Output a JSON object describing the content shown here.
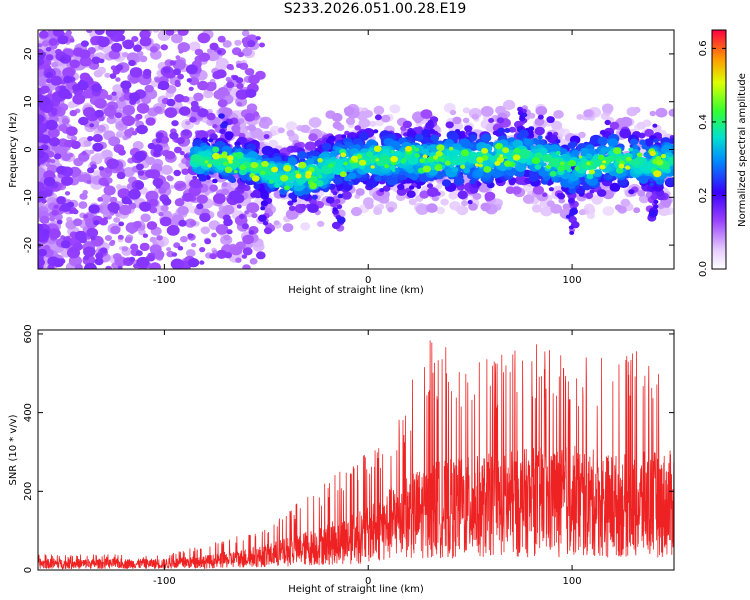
{
  "title": "S233.2026.051.00.28.E19",
  "chart_data": [
    {
      "type": "heatmap",
      "xlabel": "Height of straight line (km)",
      "ylabel": "Frequency (Hz)",
      "xlim": [
        -162,
        150
      ],
      "ylim": [
        -25,
        25
      ],
      "xticks": [
        -100,
        0,
        100
      ],
      "yticks": [
        -20,
        -10,
        0,
        10,
        20
      ],
      "colorbar": {
        "label": "Normalized spectral amplitude",
        "range": [
          0,
          0.65
        ],
        "ticks": [
          "0.0",
          "0.2",
          "0.4",
          "0.6"
        ],
        "tick_values": [
          0,
          0.2,
          0.4,
          0.6
        ]
      },
      "signal_center_profile": {
        "x": [
          -85,
          -60,
          -40,
          -25,
          -15,
          0,
          20,
          50,
          80,
          100,
          120,
          145
        ],
        "freq": [
          -2,
          -3,
          -6,
          -5,
          -3,
          -2,
          -2,
          -2,
          -1,
          -4,
          -2,
          -3
        ]
      }
    },
    {
      "type": "line",
      "xlabel": "Height of straight line (km)",
      "ylabel": "SNR (10 * v/v)",
      "xlim": [
        -162,
        150
      ],
      "ylim": [
        0,
        610
      ],
      "xticks": [
        -100,
        0,
        100
      ],
      "yticks": [
        0,
        200,
        400,
        600
      ],
      "series": [
        {
          "name": "SNR",
          "color": "#ee2222",
          "envelope_x": [
            -162,
            -100,
            -75,
            -50,
            -25,
            0,
            15,
            30,
            50,
            80,
            100,
            120,
            150
          ],
          "envelope_mean": [
            20,
            20,
            28,
            45,
            75,
            110,
            160,
            190,
            200,
            215,
            220,
            205,
            210
          ],
          "envelope_max": [
            40,
            40,
            70,
            110,
            210,
            310,
            390,
            600,
            520,
            590,
            530,
            560,
            550
          ]
        }
      ]
    }
  ]
}
